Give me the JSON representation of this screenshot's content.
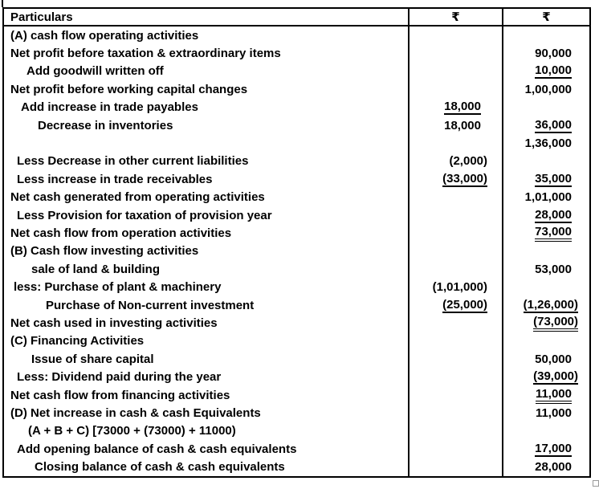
{
  "colors": {
    "background": "#ffffff",
    "text": "#000000",
    "table_border": "#000000",
    "resize_handle_border": "#9a9a9a"
  },
  "table": {
    "header": {
      "particulars": "Particulars",
      "amount1": "₹",
      "amount2": "₹"
    },
    "rows": [
      {
        "p": "(A) cash flow operating activities",
        "ind": 0
      },
      {
        "p": "Net profit before taxation & extraordinary items",
        "ind": 0,
        "c2": "90,000"
      },
      {
        "p": "Add goodwill written off",
        "ind": 20,
        "c2": "10,000",
        "u2": "s"
      },
      {
        "p": "Net profit before working capital changes",
        "ind": 0,
        "c2": "1,00,000"
      },
      {
        "p": "Add increase in trade payables",
        "ind": 13,
        "c1": "18,000",
        "u1": "s"
      },
      {
        "p": "Decrease in inventories",
        "ind": 34,
        "c1": "18,000",
        "c2": "36,000",
        "u2": "s"
      },
      {
        "p": "",
        "ind": 0,
        "c2": "1,36,000"
      },
      {
        "p": "Less Decrease in other current liabilities",
        "ind": 8,
        "c1": "(2,000)"
      },
      {
        "p": "Less increase in trade receivables",
        "ind": 8,
        "c1": "(33,000)",
        "u1": "s",
        "c2": "35,000",
        "u2": "s"
      },
      {
        "p": "Net cash generated from operating activities",
        "ind": 0,
        "c2": "1,01,000"
      },
      {
        "p": "Less Provision for taxation of provision year",
        "ind": 8,
        "c2": "28,000",
        "u2": "s"
      },
      {
        "p": "Net cash flow from operation activities",
        "ind": 0,
        "c2": "73,000",
        "u2": "d"
      },
      {
        "p": "(B) Cash flow investing activities",
        "ind": 0
      },
      {
        "p": "sale of land & building",
        "ind": 26,
        "c2": "53,000"
      },
      {
        "p": "less: Purchase of plant & machinery",
        "ind": 4,
        "c1": "(1,01,000)"
      },
      {
        "p": "Purchase of Non-current investment",
        "ind": 44,
        "c1": "(25,000)",
        "u1": "s",
        "c2": "(1,26,000)",
        "u2": "s"
      },
      {
        "p": "Net cash used in investing activities",
        "ind": 0,
        "c2": "(73,000)",
        "u2": "d"
      },
      {
        "p": "(C) Financing Activities",
        "ind": 0
      },
      {
        "p": "Issue of share capital",
        "ind": 26,
        "c2": "50,000"
      },
      {
        "p": "Less: Dividend paid during the year",
        "ind": 8,
        "c2": "(39,000)",
        "u2": "s"
      },
      {
        "p": "Net cash flow from financing activities",
        "ind": 0,
        "c2": "11,000",
        "u2": "d"
      },
      {
        "p": "(D) Net increase in cash & cash Equivalents",
        "ind": 0,
        "c2": "11,000"
      },
      {
        "p": "(A + B + C) [73000 + (73000) + 11000)",
        "ind": 22
      },
      {
        "p": "Add opening balance of cash & cash equivalents",
        "ind": 8,
        "c2": "17,000",
        "u2": "s"
      },
      {
        "p": "Closing balance of cash & cash equivalents",
        "ind": 30,
        "c2": "28,000"
      }
    ]
  }
}
